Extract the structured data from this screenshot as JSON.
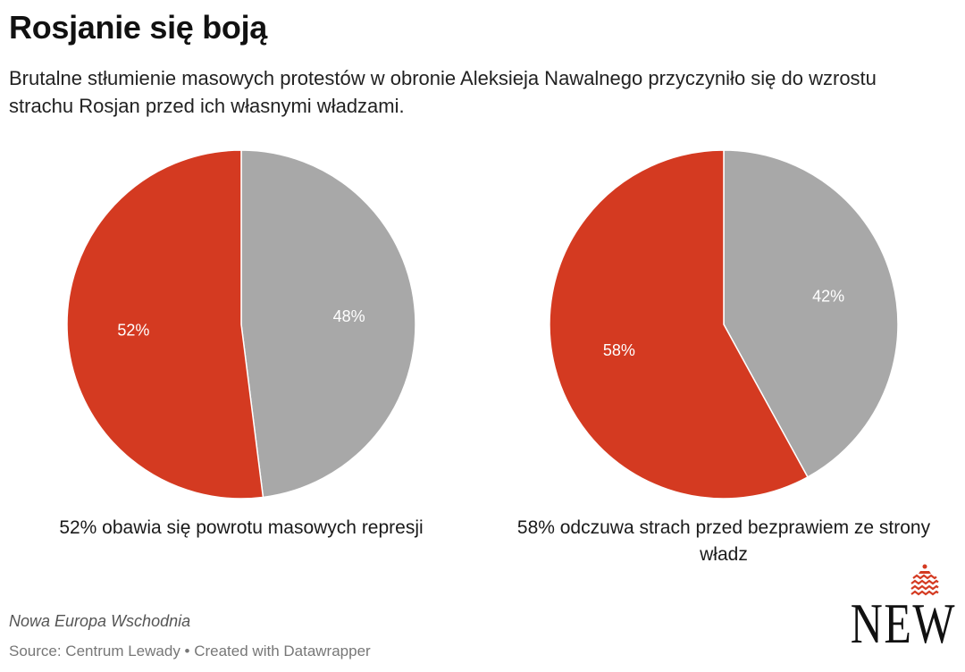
{
  "title": "Rosjanie się boją",
  "subtitle": "Brutalne stłumienie masowych protestów w obronie Aleksieja Nawalnego przyczyniło się do wzrostu strachu Rosjan przed ich własnymi władzami.",
  "colors": {
    "red": "#d43a21",
    "grey": "#a8a8a8",
    "label": "#ffffff"
  },
  "chart_data": [
    {
      "type": "pie",
      "caption": "52% obawia się powrotu masowych represji",
      "slices": [
        {
          "value": 52,
          "label": "52%",
          "color": "#d43a21"
        },
        {
          "value": 48,
          "label": "48%",
          "color": "#a8a8a8"
        }
      ]
    },
    {
      "type": "pie",
      "caption": "58% odczuwa strach przed bezprawiem ze strony władz",
      "slices": [
        {
          "value": 58,
          "label": "58%",
          "color": "#d43a21"
        },
        {
          "value": 42,
          "label": "42%",
          "color": "#a8a8a8"
        }
      ]
    }
  ],
  "footer": {
    "publisher": "Nowa Europa Wschodnia",
    "source": "Source: Centrum Lewady • Created with Datawrapper"
  },
  "logo": {
    "text": "NEW",
    "icon": "zigzag-waves-icon"
  }
}
